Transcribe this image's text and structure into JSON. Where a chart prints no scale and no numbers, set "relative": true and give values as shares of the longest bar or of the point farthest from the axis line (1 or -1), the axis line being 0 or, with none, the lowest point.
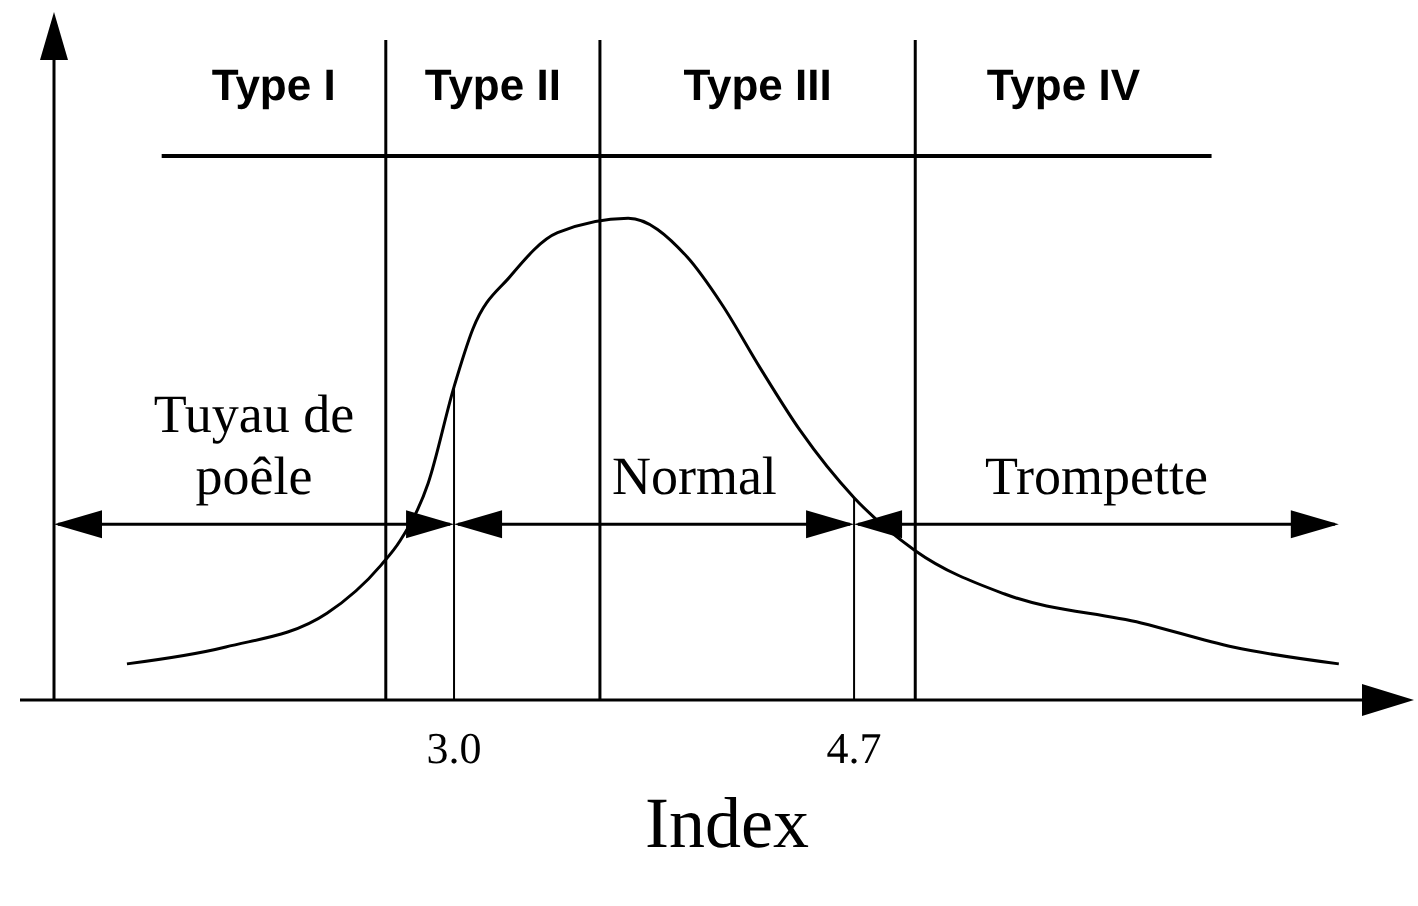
{
  "chart_data": {
    "type": "line",
    "relative": true,
    "xlabel": "Index",
    "xlim": [
      1.3,
      7.02
    ],
    "xticks": [
      {
        "value": 3.0,
        "label": "3.0"
      },
      {
        "value": 4.7,
        "label": "4.7"
      }
    ],
    "series": [
      {
        "color": "#000000",
        "x": [
          1.61,
          2.03,
          2.46,
          2.69,
          2.77,
          2.89,
          3.0,
          3.08,
          3.24,
          3.44,
          3.74,
          3.99,
          4.14,
          4.3,
          4.47,
          4.7,
          4.96,
          5.34,
          5.92,
          6.31,
          6.76
        ],
        "values": [
          0.075,
          0.11,
          0.18,
          0.28,
          0.33,
          0.45,
          0.65,
          0.77,
          0.88,
          0.97,
          1,
          0.92,
          0.82,
          0.69,
          0.56,
          0.42,
          0.31,
          0.22,
          0.16,
          0.11,
          0.075
        ]
      }
    ],
    "marker": "none",
    "line_style": "solid",
    "ref_lines": [
      {
        "axis": "x",
        "value": 2.71,
        "label": null
      },
      {
        "axis": "x",
        "value": 3.0,
        "label": null
      },
      {
        "axis": "x",
        "value": 4.7,
        "label": null
      },
      {
        "axis": "x",
        "value": 3.62,
        "label": null
      },
      {
        "axis": "x",
        "value": 4.96,
        "label": null
      }
    ],
    "annotations": [
      "Type I",
      "Type II",
      "Type III",
      "Type IV",
      "Tuyau de poêle",
      "Normal",
      "Trompette"
    ]
  }
}
